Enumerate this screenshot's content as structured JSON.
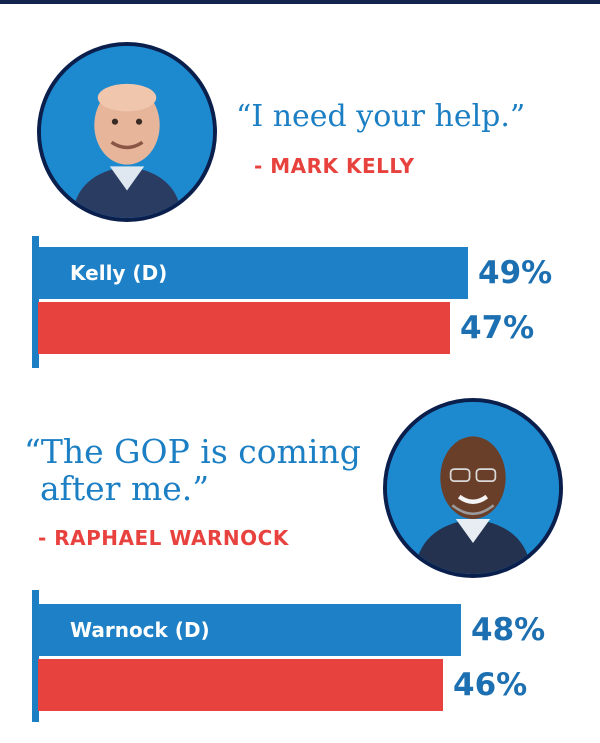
{
  "colors": {
    "dem": "#1e80c6",
    "rep": "#e8423f",
    "navy": "#13254f",
    "quote": "#1c7fc4"
  },
  "panels": [
    {
      "quote": "“I need your help.”",
      "attribution": "- MARK KELLY",
      "avatar": "mark-kelly-photo"
    },
    {
      "quote_line1": "“The GOP is coming",
      "quote_line2": "after me.”",
      "attribution": "- RAPHAEL WARNOCK",
      "avatar": "raphael-warnock-photo"
    }
  ],
  "chart_data": [
    {
      "type": "bar",
      "categories": [
        "Kelly (D)",
        ""
      ],
      "values": [
        49,
        47
      ],
      "value_labels": [
        "49%",
        "47%"
      ],
      "xlim": [
        0,
        60
      ]
    },
    {
      "type": "bar",
      "categories": [
        "Warnock (D)",
        ""
      ],
      "values": [
        48,
        46
      ],
      "value_labels": [
        "48%",
        "46%"
      ],
      "xlim": [
        0,
        60
      ]
    }
  ]
}
